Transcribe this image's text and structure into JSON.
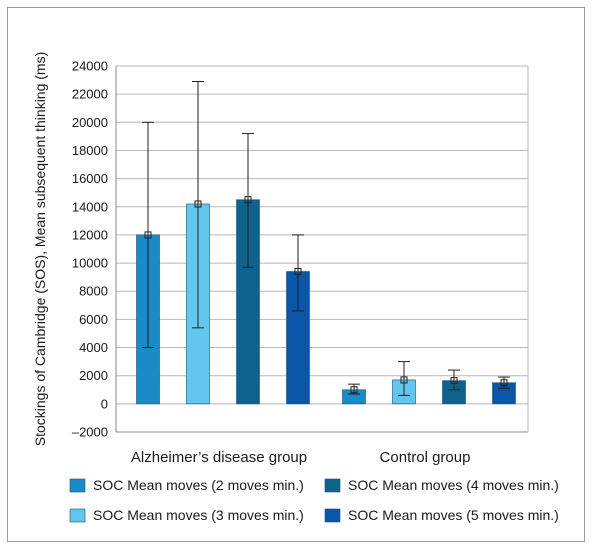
{
  "chart_data": {
    "type": "bar",
    "title": "",
    "xlabel": "",
    "ylabel": "Stockings of Cambridge (SOS), Mean subsequent thinking (ms)",
    "ylim": [
      -2000,
      24000
    ],
    "yticks": [
      -2000,
      0,
      2000,
      4000,
      6000,
      8000,
      10000,
      12000,
      14000,
      16000,
      18000,
      20000,
      22000,
      24000
    ],
    "ytick_labels": [
      "–2000",
      "0",
      "2000",
      "4000",
      "6000",
      "8000",
      "10000",
      "12000",
      "14000",
      "16000",
      "18000",
      "20000",
      "22000",
      "24000"
    ],
    "grid": true,
    "legend_position": "bottom",
    "categories": [
      "Alzheimer’s disease group",
      "Control group"
    ],
    "series": [
      {
        "name": "SOC Mean moves (2 moves min.)",
        "color": "#1a8bc6",
        "values": [
          12000,
          1000
        ],
        "error_low": [
          4000,
          700
        ],
        "error_high": [
          20000,
          1400
        ]
      },
      {
        "name": "SOC Mean moves (3 moves min.)",
        "color": "#62c6ee",
        "values": [
          14200,
          1700
        ],
        "error_low": [
          5400,
          600
        ],
        "error_high": [
          22900,
          3000
        ]
      },
      {
        "name": "SOC Mean moves (4 moves min.)",
        "color": "#0e628c",
        "values": [
          14500,
          1650
        ],
        "error_low": [
          9700,
          1000
        ],
        "error_high": [
          19200,
          2400
        ]
      },
      {
        "name": "SOC Mean moves (5 moves min.)",
        "color": "#0a56a8",
        "values": [
          9400,
          1500
        ],
        "error_low": [
          6600,
          1100
        ],
        "error_high": [
          12000,
          1900
        ]
      }
    ]
  }
}
